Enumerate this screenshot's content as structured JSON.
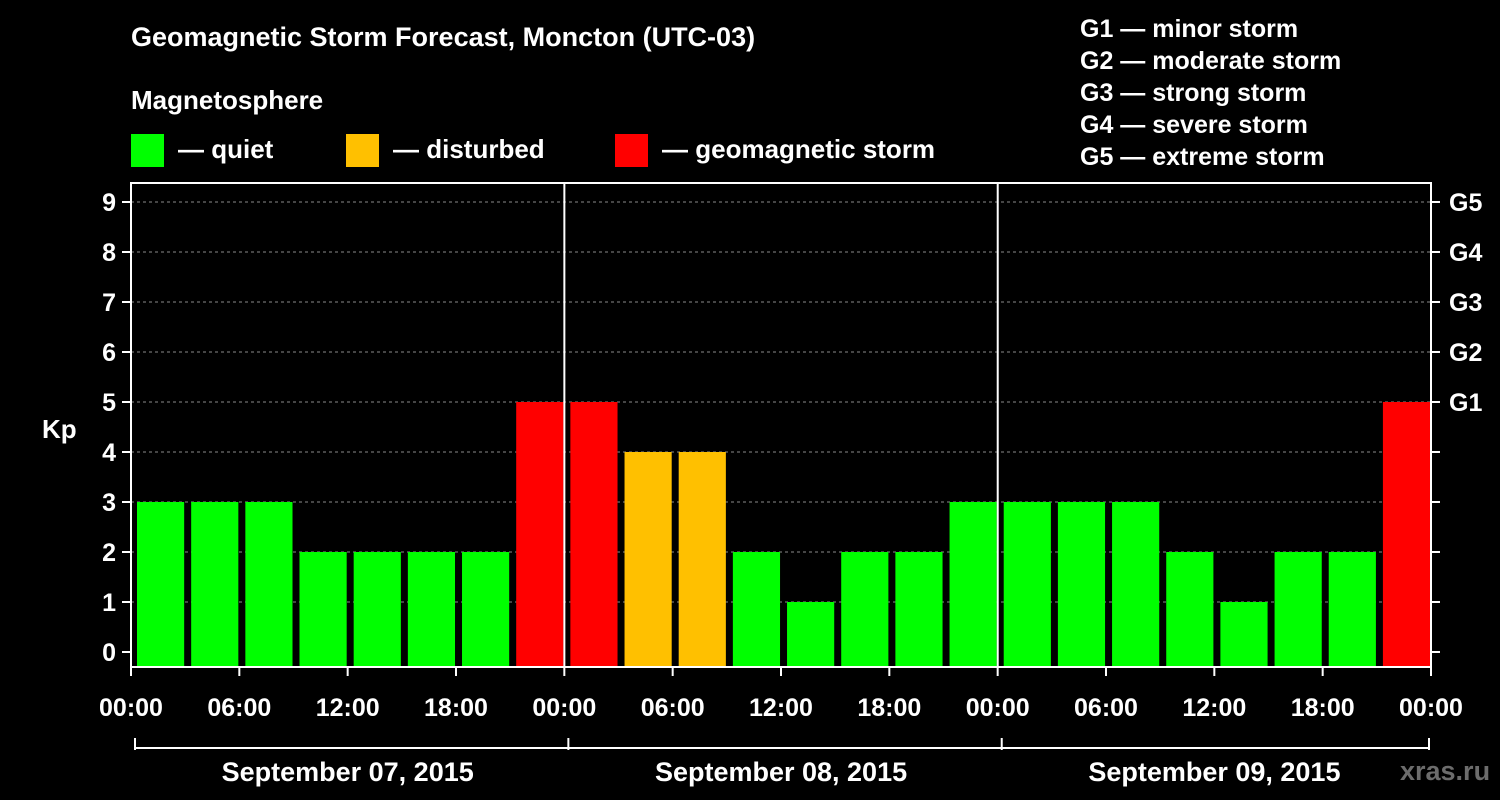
{
  "title": "Geomagnetic Storm Forecast, Moncton (UTC-03)",
  "subtitle": "Magnetosphere",
  "legend": [
    {
      "label": "— quiet",
      "color": "#00ff00"
    },
    {
      "label": "— disturbed",
      "color": "#ffc000"
    },
    {
      "label": "— geomagnetic storm",
      "color": "#ff0000"
    }
  ],
  "storm_scale": [
    "G1 — minor storm",
    "G2 — moderate storm",
    "G3 — strong storm",
    "G4 — severe storm",
    "G5 — extreme storm"
  ],
  "watermark": "xras.ru",
  "colors": {
    "quiet": "#00ff00",
    "disturbed": "#ffc000",
    "storm": "#ff0000",
    "background": "#000000"
  },
  "chart_data": {
    "type": "bar",
    "ylabel": "Kp",
    "ylim": [
      0,
      9
    ],
    "yticks": [
      0,
      1,
      2,
      3,
      4,
      5,
      6,
      7,
      8,
      9
    ],
    "right_axis_labels": [
      {
        "kp": 5,
        "label": "G1"
      },
      {
        "kp": 6,
        "label": "G2"
      },
      {
        "kp": 7,
        "label": "G3"
      },
      {
        "kp": 8,
        "label": "G4"
      },
      {
        "kp": 9,
        "label": "G5"
      }
    ],
    "grid": true,
    "x_tick_labels": [
      "00:00",
      "06:00",
      "12:00",
      "18:00",
      "00:00",
      "06:00",
      "12:00",
      "18:00",
      "00:00",
      "06:00",
      "12:00",
      "18:00",
      "00:00"
    ],
    "days": [
      "September 07, 2015",
      "September 08, 2015",
      "September 09, 2015"
    ],
    "interval_hours": 3,
    "values": [
      3,
      3,
      3,
      2,
      2,
      2,
      2,
      5,
      5,
      4,
      4,
      2,
      1,
      2,
      2,
      3,
      3,
      3,
      3,
      2,
      1,
      2,
      2,
      5
    ],
    "levels": [
      "quiet",
      "quiet",
      "quiet",
      "quiet",
      "quiet",
      "quiet",
      "quiet",
      "storm",
      "storm",
      "disturbed",
      "disturbed",
      "quiet",
      "quiet",
      "quiet",
      "quiet",
      "quiet",
      "quiet",
      "quiet",
      "quiet",
      "quiet",
      "quiet",
      "quiet",
      "quiet",
      "storm"
    ]
  }
}
